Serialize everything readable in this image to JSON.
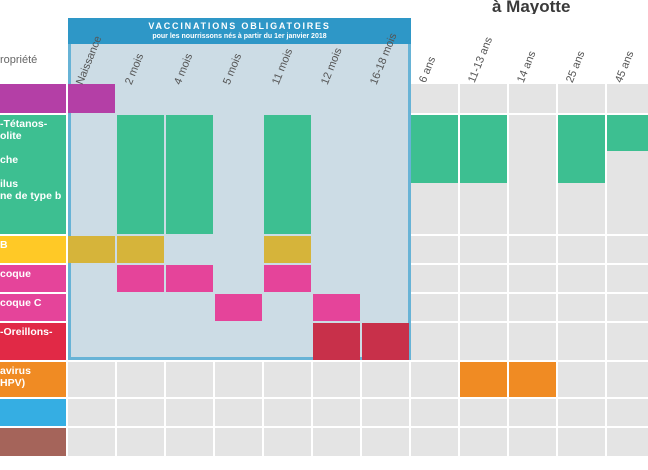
{
  "title_fragment": "à Mayotte",
  "header_prefix": "ropriété",
  "mandatory": {
    "title": "VACCINATIONS OBLIGATOIRES",
    "subtitle": "pour les nourrissons nés à partir du 1er janvier 2018"
  },
  "columns": [
    "Naissance",
    "2 mois",
    "4 mois",
    "5 mois",
    "11 mois",
    "12 mois",
    "16-18 mois",
    "6 ans",
    "11-13 ans",
    "14 ans",
    "25 ans",
    "45 ans"
  ],
  "rows": [
    {
      "label": "",
      "color": "#b43fa6",
      "cells": [
        "Naissance"
      ]
    },
    {
      "label": "-Tétanos-\nolite\n\nche\n\nilus\nne de type b",
      "color": "#3dbf91",
      "cells": [
        "2 mois",
        "4 mois",
        "11 mois",
        "6 ans",
        "11-13 ans",
        "25 ans",
        "45 ans"
      ]
    },
    {
      "label": "B",
      "color": "#ffc926",
      "cells": [
        "Naissance",
        "2 mois",
        "11 mois"
      ]
    },
    {
      "label": "coque",
      "color": "#e5449a",
      "cells": [
        "2 mois",
        "4 mois",
        "11 mois"
      ]
    },
    {
      "label": "coque C",
      "color": "#e5449a",
      "cells": [
        "5 mois",
        "12 mois"
      ]
    },
    {
      "label": "-Oreillons-",
      "color": "#e12946",
      "cells": [
        "12 mois",
        "16-18 mois"
      ]
    },
    {
      "label": "avirus\nHPV)",
      "color": "#f08b23",
      "cells": [
        "11-13 ans",
        "14 ans"
      ]
    },
    {
      "label": "",
      "color": "#35aee3",
      "cells": []
    },
    {
      "label": "",
      "color": "#a5645a",
      "cells": []
    }
  ]
}
